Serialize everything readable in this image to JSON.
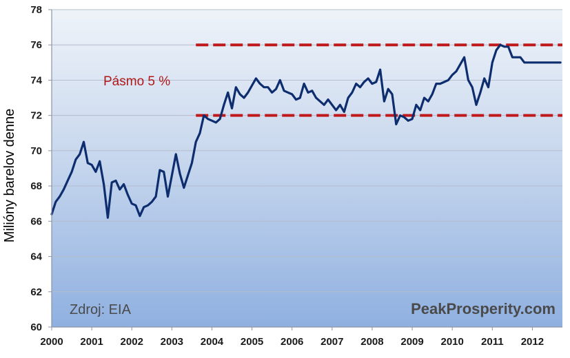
{
  "chart_data": {
    "type": "line",
    "ylabel": "Milióny barelov denne",
    "ylim": [
      60,
      78
    ],
    "yticks": [
      "60",
      "62",
      "64",
      "66",
      "68",
      "70",
      "72",
      "74",
      "76",
      "78"
    ],
    "xlim": [
      2000,
      2012.75
    ],
    "xticks": [
      "2000",
      "2001",
      "2002",
      "2003",
      "2004",
      "2005",
      "2006",
      "2007",
      "2008",
      "2009",
      "2010",
      "2011",
      "2012"
    ],
    "grid": true,
    "band": {
      "label": "Pásmo 5 %",
      "upper": 76,
      "lower": 72,
      "x_start": 2003.6,
      "color": "#c0191c"
    },
    "annotations": {
      "source": "Zdroj: EIA",
      "brand": "PeakProsperity.com"
    },
    "line_color": "#0d2d6e",
    "series": [
      {
        "x": [
          2000.0,
          2000.1,
          2000.2,
          2000.3,
          2000.4,
          2000.5,
          2000.6,
          2000.7,
          2000.8,
          2000.9,
          2001.0,
          2001.1,
          2001.2,
          2001.3,
          2001.4,
          2001.5,
          2001.6,
          2001.7,
          2001.8,
          2001.9,
          2002.0,
          2002.1,
          2002.2,
          2002.3,
          2002.4,
          2002.5,
          2002.6,
          2002.7,
          2002.8,
          2002.9,
          2003.0,
          2003.1,
          2003.2,
          2003.3,
          2003.4,
          2003.5,
          2003.6,
          2003.7,
          2003.8,
          2003.9,
          2004.0,
          2004.1,
          2004.2,
          2004.3,
          2004.4,
          2004.5,
          2004.6,
          2004.7,
          2004.8,
          2004.9,
          2005.0,
          2005.1,
          2005.2,
          2005.3,
          2005.4,
          2005.5,
          2005.6,
          2005.7,
          2005.8,
          2005.9,
          2006.0,
          2006.1,
          2006.2,
          2006.3,
          2006.4,
          2006.5,
          2006.6,
          2006.7,
          2006.8,
          2006.9,
          2007.0,
          2007.1,
          2007.2,
          2007.3,
          2007.4,
          2007.5,
          2007.6,
          2007.7,
          2007.8,
          2007.9,
          2008.0,
          2008.1,
          2008.2,
          2008.3,
          2008.4,
          2008.5,
          2008.6,
          2008.7,
          2008.8,
          2008.9,
          2009.0,
          2009.1,
          2009.2,
          2009.3,
          2009.4,
          2009.5,
          2009.6,
          2009.7,
          2009.8,
          2009.9,
          2010.0,
          2010.1,
          2010.2,
          2010.3,
          2010.4,
          2010.5,
          2010.6,
          2010.7,
          2010.8,
          2010.9,
          2011.0,
          2011.1,
          2011.2,
          2011.3,
          2011.4,
          2011.5,
          2011.6,
          2011.7,
          2011.8,
          2011.9,
          2012.0,
          2012.1,
          2012.2,
          2012.3,
          2012.4,
          2012.5,
          2012.6,
          2012.7
        ],
        "values": [
          66.4,
          67.1,
          67.4,
          67.8,
          68.3,
          68.8,
          69.5,
          69.8,
          70.5,
          69.3,
          69.2,
          68.8,
          69.4,
          68.1,
          66.2,
          68.2,
          68.3,
          67.8,
          68.1,
          67.5,
          67.0,
          66.9,
          66.3,
          66.8,
          66.9,
          67.1,
          67.4,
          68.9,
          68.8,
          67.4,
          68.6,
          69.8,
          68.7,
          67.9,
          68.6,
          69.3,
          70.5,
          71.0,
          72.0,
          71.8,
          71.7,
          71.6,
          71.8,
          72.6,
          73.3,
          72.4,
          73.6,
          73.2,
          73.0,
          73.3,
          73.7,
          74.1,
          73.8,
          73.6,
          73.6,
          73.3,
          73.5,
          74.0,
          73.4,
          73.3,
          73.2,
          72.9,
          73.0,
          73.8,
          73.3,
          73.4,
          73.0,
          72.8,
          72.6,
          72.9,
          72.6,
          72.3,
          72.6,
          72.2,
          73.0,
          73.3,
          73.8,
          73.6,
          73.9,
          74.1,
          73.8,
          73.9,
          74.6,
          72.8,
          73.5,
          73.2,
          71.5,
          72.0,
          71.9,
          71.7,
          71.8,
          72.6,
          72.3,
          73.0,
          72.8,
          73.2,
          73.8,
          73.8,
          73.9,
          74.0,
          74.3,
          74.5,
          74.9,
          75.3,
          74.0,
          73.6,
          72.6,
          73.3,
          74.1,
          73.6,
          75.0,
          75.7,
          76.0,
          75.9,
          75.9,
          75.3,
          75.3,
          75.3,
          75.0,
          75.0,
          75.0,
          75.0,
          75.0,
          75.0,
          75.0,
          75.0,
          75.0,
          75.0
        ]
      }
    ]
  }
}
